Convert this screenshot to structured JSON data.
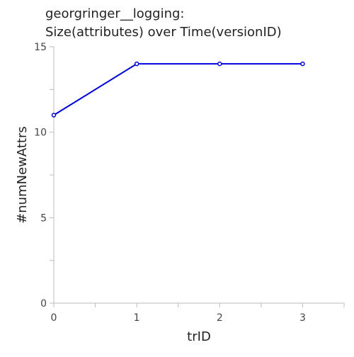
{
  "chart_data": {
    "type": "line",
    "title_lines": [
      "georgringer__logging:",
      "Size(attributes) over Time(versionID)"
    ],
    "xlabel": "trID",
    "ylabel": "#numNewAttrs",
    "x": [
      0,
      1,
      2,
      3
    ],
    "series": [
      {
        "values": [
          11,
          14,
          14,
          14
        ]
      }
    ],
    "xlim": [
      0,
      3.5
    ],
    "ylim": [
      0,
      15
    ],
    "x_ticks": [
      0,
      0.5,
      1,
      1.5,
      2,
      2.5,
      3,
      3.5
    ],
    "x_tick_labels": [
      "0",
      "",
      "1",
      "",
      "2",
      "",
      "3",
      ""
    ],
    "y_ticks": [
      0,
      2.5,
      5,
      7.5,
      10,
      12.5,
      15
    ],
    "y_tick_labels": [
      "0",
      "",
      "5",
      "",
      "10",
      "",
      "15"
    ],
    "grid": false,
    "line_color": "#0000dd"
  }
}
